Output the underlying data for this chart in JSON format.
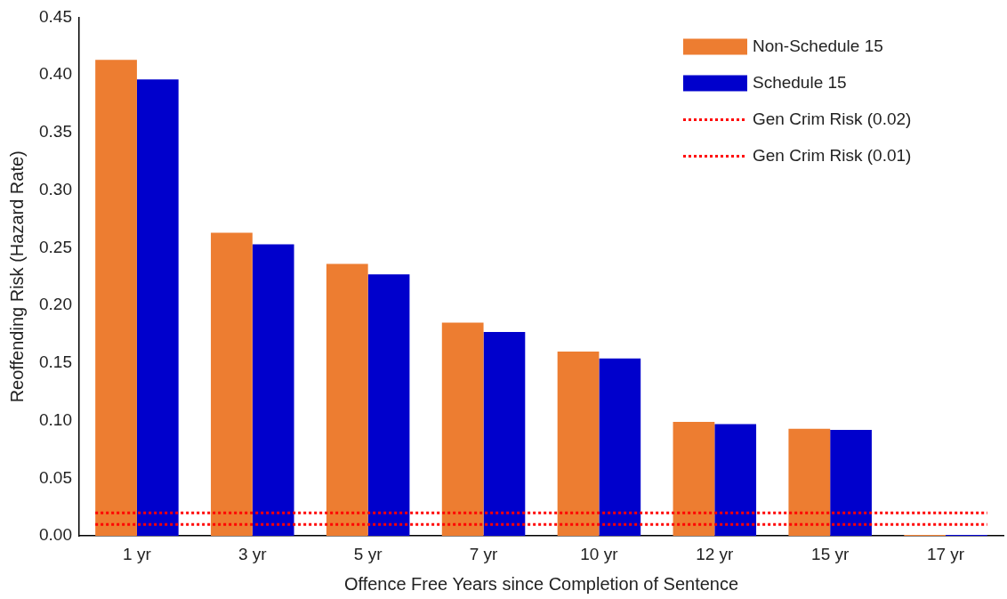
{
  "chart_data": {
    "type": "bar",
    "xlabel": "Offence Free Years since Completion of Sentence",
    "ylabel": "Reoffending Risk (Hazard Rate)",
    "categories": [
      "1 yr",
      "3 yr",
      "5 yr",
      "7 yr",
      "10 yr",
      "12 yr",
      "15 yr",
      "17 yr"
    ],
    "series": [
      {
        "name": "Non-Schedule 15",
        "color": "#ed7d31",
        "values": [
          0.413,
          0.263,
          0.236,
          0.185,
          0.16,
          0.099,
          0.093,
          0.001
        ]
      },
      {
        "name": "Schedule 15",
        "color": "#0000cc",
        "values": [
          0.396,
          0.253,
          0.227,
          0.177,
          0.154,
          0.097,
          0.092,
          0.001
        ]
      }
    ],
    "ylim": [
      0,
      0.45
    ],
    "yticks": [
      {
        "value": 0,
        "label": "0.00"
      },
      {
        "value": 0.05,
        "label": "0.05"
      },
      {
        "value": 0.1,
        "label": "0.10"
      },
      {
        "value": 0.15,
        "label": "0.15"
      },
      {
        "value": 0.2,
        "label": "0.20"
      },
      {
        "value": 0.25,
        "label": "0.25"
      },
      {
        "value": 0.3,
        "label": "0.30"
      },
      {
        "value": 0.35,
        "label": "0.35"
      },
      {
        "value": 0.4,
        "label": "0.40"
      },
      {
        "value": 0.45,
        "label": "0.45"
      }
    ],
    "ref_lines": [
      {
        "axis": "y",
        "value": 0.02,
        "label": "Gen Crim Risk (0.02)",
        "color": "#ff0000",
        "line_style": "dotted"
      },
      {
        "axis": "y",
        "value": 0.01,
        "label": "Gen Crim Risk (0.01)",
        "color": "#ff0000",
        "line_style": "dotted"
      }
    ],
    "grid": false,
    "legend": "top right"
  }
}
